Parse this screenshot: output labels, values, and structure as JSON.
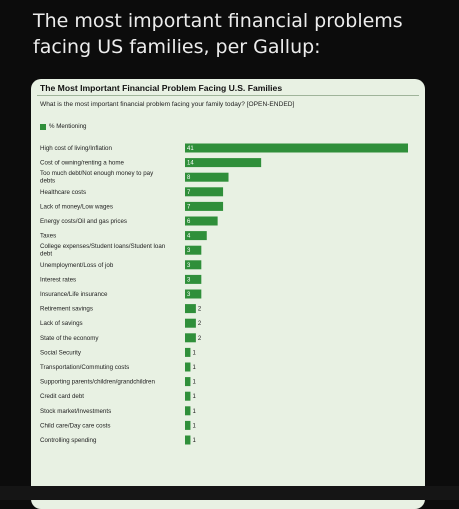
{
  "headline": "The most important financial problems facing US families, per Gallup:",
  "card": {
    "title": "The Most Important Financial Problem Facing U.S. Families",
    "question": "What is the most important financial problem facing your family today? [OPEN-ENDED]"
  },
  "chart_data": {
    "type": "bar",
    "orientation": "horizontal",
    "title": "The Most Important Financial Problem Facing U.S. Families",
    "subtitle": "What is the most important financial problem facing your family today? [OPEN-ENDED]",
    "series": [
      {
        "name": "% Mentioning",
        "color": "#2f8f3a",
        "values": [
          41,
          14,
          8,
          7,
          7,
          6,
          4,
          3,
          3,
          3,
          3,
          2,
          2,
          2,
          1,
          1,
          1,
          1,
          1,
          1,
          1
        ]
      }
    ],
    "categories": [
      [
        "High cost of living/Inflation"
      ],
      [
        "Cost of owning/renting a home"
      ],
      [
        "Too much debt/Not enough money to pay",
        "debts"
      ],
      [
        "Healthcare costs"
      ],
      [
        "Lack of money/Low wages"
      ],
      [
        "Energy costs/Oil and gas prices"
      ],
      [
        "Taxes"
      ],
      [
        "College expenses/Student loans/Student loan",
        "debt"
      ],
      [
        "Unemployment/Loss of job"
      ],
      [
        "Interest rates"
      ],
      [
        "Insurance/Life insurance"
      ],
      [
        "Retirement savings"
      ],
      [
        "Lack of savings"
      ],
      [
        "State of the economy"
      ],
      [
        "Social Security"
      ],
      [
        "Transportation/Commuting costs"
      ],
      [
        "Supporting parents/children/grandchildren"
      ],
      [
        "Credit card debt"
      ],
      [
        "Stock market/Investments"
      ],
      [
        "Child care/Day care costs"
      ],
      [
        "Controlling spending"
      ]
    ],
    "xlim": [
      0,
      41
    ],
    "legend_position": "top-left",
    "grid": false,
    "value_labels": "inside-bar-start"
  }
}
